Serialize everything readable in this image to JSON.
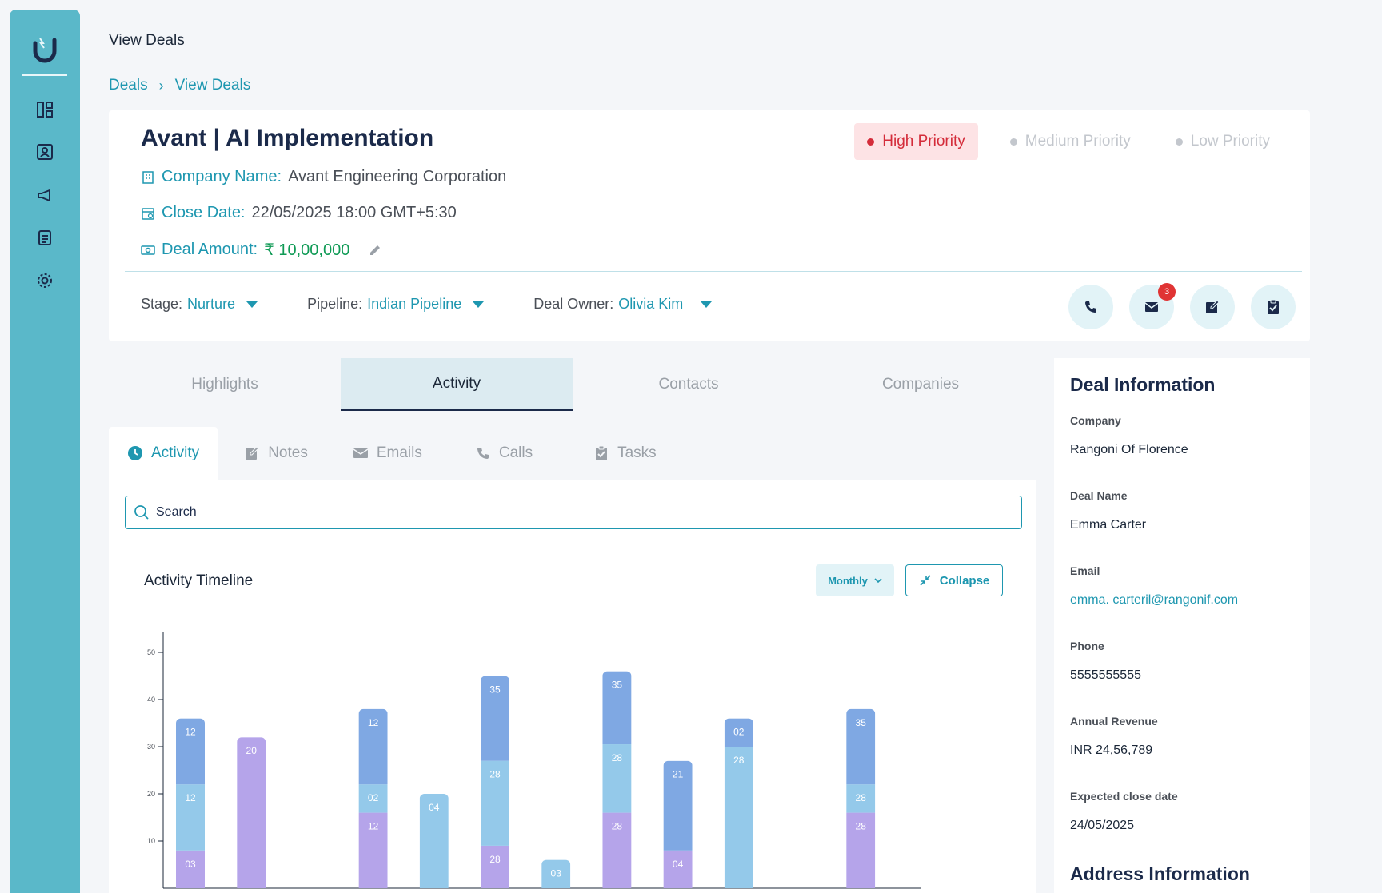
{
  "header": {
    "page_title": "View Deals"
  },
  "breadcrumb": {
    "root": "Deals",
    "separator": "›",
    "current": "View Deals"
  },
  "deal": {
    "title": "Avant | AI Implementation",
    "company_label": "Company Name:",
    "company_value": "Avant Engineering Corporation",
    "close_label": "Close Date:",
    "close_value": "22/05/2025 18:00 GMT+5:30",
    "amount_label": "Deal Amount:",
    "amount_value": "₹ 10,00,000",
    "priorities": [
      {
        "label": "High Priority",
        "active": true
      },
      {
        "label": "Medium Priority",
        "active": false
      },
      {
        "label": "Low Priority",
        "active": false
      }
    ],
    "stage_label": "Stage:",
    "stage_value": "Nurture",
    "pipeline_label": "Pipeline:",
    "pipeline_value": "Indian Pipeline",
    "owner_label": "Deal Owner:",
    "owner_value": "Olivia Kim",
    "email_badge": "3"
  },
  "main_tabs": [
    "Highlights",
    "Activity",
    "Contacts",
    "Companies"
  ],
  "sub_tabs": [
    "Activity",
    "Notes",
    "Emails",
    "Calls",
    "Tasks"
  ],
  "search": {
    "placeholder": "Search"
  },
  "timeline": {
    "title": "Activity Timeline",
    "period": "Monthly",
    "collapse_label": "Collapse"
  },
  "deal_info": {
    "title": "Deal Information",
    "fields": [
      {
        "label": "Company",
        "value": "Rangoni Of Florence"
      },
      {
        "label": "Deal Name",
        "value": "Emma Carter"
      },
      {
        "label": "Email",
        "value": "emma. carteril@rangonif.com"
      },
      {
        "label": "Phone",
        "value": "5555555555"
      },
      {
        "label": "Annual Revenue",
        "value": "INR 24,56,789"
      },
      {
        "label": "Expected close date",
        "value": "24/05/2025"
      }
    ],
    "address_title": "Address Information"
  },
  "colors": {
    "accent": "#1e97b0",
    "sidebar": "#5ab8c9",
    "series_blue": "#7fa8e3",
    "series_light": "#94c9ea",
    "series_purple": "#b5a4ea"
  },
  "chart_data": {
    "type": "bar",
    "stacked": true,
    "y_ticks": [
      10,
      20,
      30,
      40,
      50
    ],
    "ylim": [
      0,
      50
    ],
    "bars": [
      {
        "segments": [
          {
            "series": "purple",
            "value": 8,
            "label": "03"
          },
          {
            "series": "light",
            "value": 14,
            "label": "12"
          },
          {
            "series": "blue",
            "value": 14,
            "label": "12"
          }
        ]
      },
      {
        "segments": [
          {
            "series": "purple",
            "value": 32,
            "label": "20"
          }
        ]
      },
      {
        "segments": []
      },
      {
        "segments": [
          {
            "series": "purple",
            "value": 16,
            "label": "12"
          },
          {
            "series": "light",
            "value": 6,
            "label": "02"
          },
          {
            "series": "blue",
            "value": 16,
            "label": "12"
          }
        ]
      },
      {
        "segments": [
          {
            "series": "light",
            "value": 20,
            "label": "04"
          }
        ]
      },
      {
        "segments": [
          {
            "series": "purple",
            "value": 9,
            "label": "28"
          },
          {
            "series": "light",
            "value": 18,
            "label": "28"
          },
          {
            "series": "blue",
            "value": 18,
            "label": "35"
          }
        ]
      },
      {
        "segments": [
          {
            "series": "light",
            "value": 6,
            "label": "03"
          }
        ]
      },
      {
        "segments": [
          {
            "series": "purple",
            "value": 16,
            "label": "28"
          },
          {
            "series": "light",
            "value": 14.5,
            "label": "28"
          },
          {
            "series": "blue",
            "value": 15.5,
            "label": "35"
          }
        ]
      },
      {
        "segments": [
          {
            "series": "purple",
            "value": 8,
            "label": "04"
          },
          {
            "series": "blue",
            "value": 19,
            "label": "21"
          }
        ]
      },
      {
        "segments": [
          {
            "series": "light",
            "value": 30,
            "label": "28"
          },
          {
            "series": "blue",
            "value": 6,
            "label": "02"
          }
        ]
      },
      {
        "segments": []
      },
      {
        "segments": [
          {
            "series": "purple",
            "value": 16,
            "label": "28"
          },
          {
            "series": "light",
            "value": 6,
            "label": "28"
          },
          {
            "series": "blue",
            "value": 16,
            "label": "35"
          }
        ]
      }
    ]
  }
}
